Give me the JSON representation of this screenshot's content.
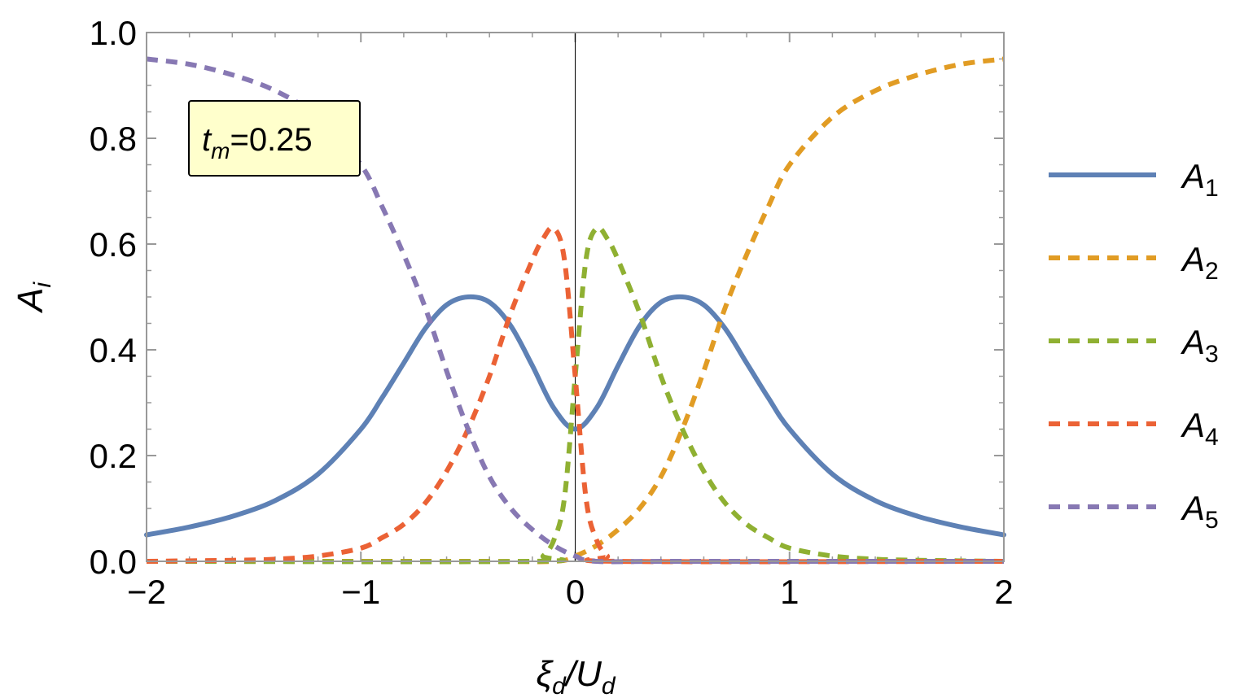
{
  "chart_data": {
    "type": "line",
    "xlabel": {
      "main": "ξ",
      "sub": "d",
      "sep": "/",
      "main2": "U",
      "sub2": "d"
    },
    "ylabel": {
      "main": "A",
      "sub": "i"
    },
    "xlim": [
      -2,
      2
    ],
    "ylim": [
      0,
      1
    ],
    "x_ticks": [
      -2,
      -1,
      0,
      1,
      2
    ],
    "x_tick_labels": [
      "−2",
      "−1",
      "0",
      "1",
      "2"
    ],
    "y_ticks": [
      0,
      0.2,
      0.4,
      0.6,
      0.8,
      1.0
    ],
    "y_tick_labels": [
      "0.0",
      "0.2",
      "0.4",
      "0.6",
      "0.8",
      "1.0"
    ],
    "grid": false,
    "legend_position": "right",
    "annotation": {
      "main": "t",
      "sub": "m",
      "rest": "=0.25",
      "background": "#ffffcc"
    },
    "series": [
      {
        "name": "A1",
        "label_main": "A",
        "label_sub": "1",
        "color": "#5e81b5",
        "dashed": false,
        "x": [
          -2,
          -1.8,
          -1.6,
          -1.4,
          -1.2,
          -1.0,
          -0.9,
          -0.8,
          -0.7,
          -0.6,
          -0.5,
          -0.4,
          -0.3,
          -0.2,
          -0.1,
          0,
          0.1,
          0.2,
          0.3,
          0.4,
          0.5,
          0.6,
          0.7,
          0.8,
          0.9,
          1.0,
          1.2,
          1.4,
          1.6,
          1.8,
          2
        ],
        "y": [
          0.05,
          0.065,
          0.085,
          0.115,
          0.165,
          0.25,
          0.31,
          0.375,
          0.44,
          0.485,
          0.5,
          0.49,
          0.445,
          0.37,
          0.29,
          0.25,
          0.29,
          0.37,
          0.445,
          0.49,
          0.5,
          0.485,
          0.44,
          0.375,
          0.31,
          0.25,
          0.165,
          0.115,
          0.085,
          0.065,
          0.05
        ]
      },
      {
        "name": "A2",
        "label_main": "A",
        "label_sub": "2",
        "color": "#e19c24",
        "dashed": true,
        "x": [
          -2,
          -0.5,
          -0.1,
          0,
          0.1,
          0.2,
          0.3,
          0.4,
          0.5,
          0.6,
          0.7,
          0.8,
          0.9,
          1.0,
          1.2,
          1.4,
          1.6,
          1.8,
          2
        ],
        "y": [
          0,
          0,
          0,
          0.01,
          0.03,
          0.06,
          0.1,
          0.16,
          0.25,
          0.36,
          0.48,
          0.58,
          0.67,
          0.75,
          0.84,
          0.89,
          0.92,
          0.94,
          0.95
        ]
      },
      {
        "name": "A3",
        "label_main": "A",
        "label_sub": "3",
        "color": "#8fb032",
        "dashed": true,
        "x": [
          -2,
          -0.2,
          -0.15,
          -0.1,
          -0.05,
          0,
          0.05,
          0.1,
          0.15,
          0.2,
          0.3,
          0.4,
          0.5,
          0.6,
          0.7,
          0.8,
          0.9,
          1.0,
          1.2,
          1.4,
          1.6,
          2
        ],
        "y": [
          0,
          0,
          0.01,
          0.04,
          0.12,
          0.35,
          0.57,
          0.63,
          0.61,
          0.57,
          0.47,
          0.35,
          0.25,
          0.17,
          0.11,
          0.07,
          0.045,
          0.025,
          0.01,
          0.004,
          0.002,
          0
        ]
      },
      {
        "name": "A4",
        "label_main": "A",
        "label_sub": "4",
        "color": "#eb6235",
        "dashed": true,
        "x": [
          -2,
          -1.6,
          -1.4,
          -1.2,
          -1.0,
          -0.9,
          -0.8,
          -0.7,
          -0.6,
          -0.5,
          -0.4,
          -0.3,
          -0.2,
          -0.15,
          -0.1,
          -0.05,
          0,
          0.05,
          0.1,
          0.15,
          0.2,
          2
        ],
        "y": [
          0,
          0.002,
          0.004,
          0.01,
          0.025,
          0.045,
          0.07,
          0.11,
          0.17,
          0.25,
          0.35,
          0.47,
          0.57,
          0.61,
          0.63,
          0.57,
          0.35,
          0.12,
          0.04,
          0.01,
          0,
          0
        ]
      },
      {
        "name": "A5",
        "label_main": "A",
        "label_sub": "5",
        "color": "#8778b3",
        "dashed": true,
        "x": [
          -2,
          -1.8,
          -1.6,
          -1.4,
          -1.2,
          -1.0,
          -0.9,
          -0.8,
          -0.7,
          -0.6,
          -0.5,
          -0.4,
          -0.3,
          -0.2,
          -0.1,
          0,
          0.1,
          0.5,
          2
        ],
        "y": [
          0.95,
          0.94,
          0.92,
          0.89,
          0.84,
          0.75,
          0.67,
          0.58,
          0.48,
          0.36,
          0.25,
          0.16,
          0.1,
          0.06,
          0.03,
          0.01,
          0,
          0,
          0
        ]
      }
    ]
  }
}
